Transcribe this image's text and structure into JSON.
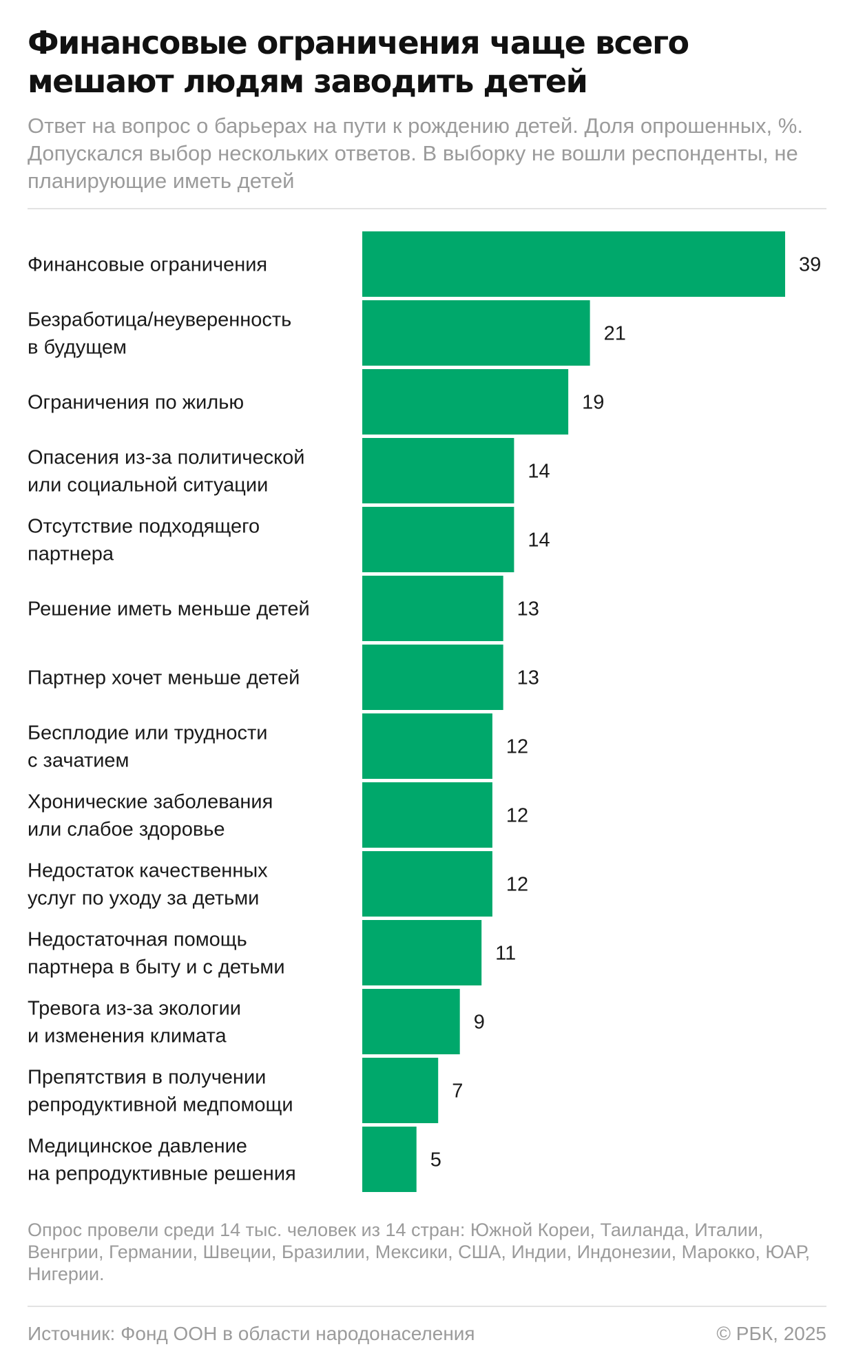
{
  "header": {
    "title": "Финансовые ограничения чаще всего мешают людям заводить детей",
    "subtitle": "Ответ на вопрос о барьерах на пути к рождению детей. Доля опрошенных, %. Допускался выбор нескольких ответов. В выборку не вошли респонденты, не планирующие иметь детей"
  },
  "chart_data": {
    "type": "bar",
    "orientation": "horizontal",
    "title": "Финансовые ограничения чаще всего мешают людям заводить детей",
    "subtitle": "Ответ на вопрос о барьерах на пути к рождению детей. Доля опрошенных, %. Допускался выбор нескольких ответов. В выборку не вошли респонденты, не планирующие иметь детей",
    "categories": [
      [
        "Финансовые ограничения"
      ],
      [
        "Безработица/неуверенность",
        "в будущем"
      ],
      [
        "Ограничения по жилью"
      ],
      [
        "Опасения из-за политической",
        "или социальной ситуации"
      ],
      [
        "Отсутствие подходящего",
        "партнера"
      ],
      [
        "Решение иметь меньше детей"
      ],
      [
        "Партнер хочет меньше детей"
      ],
      [
        "Бесплодие или трудности",
        "с зачатием"
      ],
      [
        "Хронические заболевания",
        "или слабое здоровье"
      ],
      [
        "Недостаток качественных",
        "услуг по уходу за детьми"
      ],
      [
        "Недостаточная помощь",
        "партнера в быту и с детьми"
      ],
      [
        "Тревога из-за экологии",
        "и изменения климата"
      ],
      [
        "Препятствия в получении",
        "репродуктивной медпомощи"
      ],
      [
        "Медицинское давление",
        "на репродуктивные решения"
      ]
    ],
    "values": [
      39,
      21,
      19,
      14,
      14,
      13,
      13,
      12,
      12,
      12,
      11,
      9,
      7,
      5
    ],
    "xlim": [
      0,
      39
    ],
    "grid": false,
    "legend": "none",
    "bar_color": "#00a86b"
  },
  "footer": {
    "note": "Опрос провели среди 14 тыс. человек из 14 стран: Южной Кореи, Таиланда, Италии, Венгрии, Германии, Швеции, Бразилии, Мексики, США, Индии, Индонезии, Марокко, ЮАР, Нигерии.",
    "source": "Источник: Фонд ООН в области народонаселения",
    "copyright": "© РБК, 2025"
  },
  "colors": {
    "bar": "#00a86b",
    "muted_text": "#9b9b9b",
    "rule": "#e3e3e3"
  }
}
